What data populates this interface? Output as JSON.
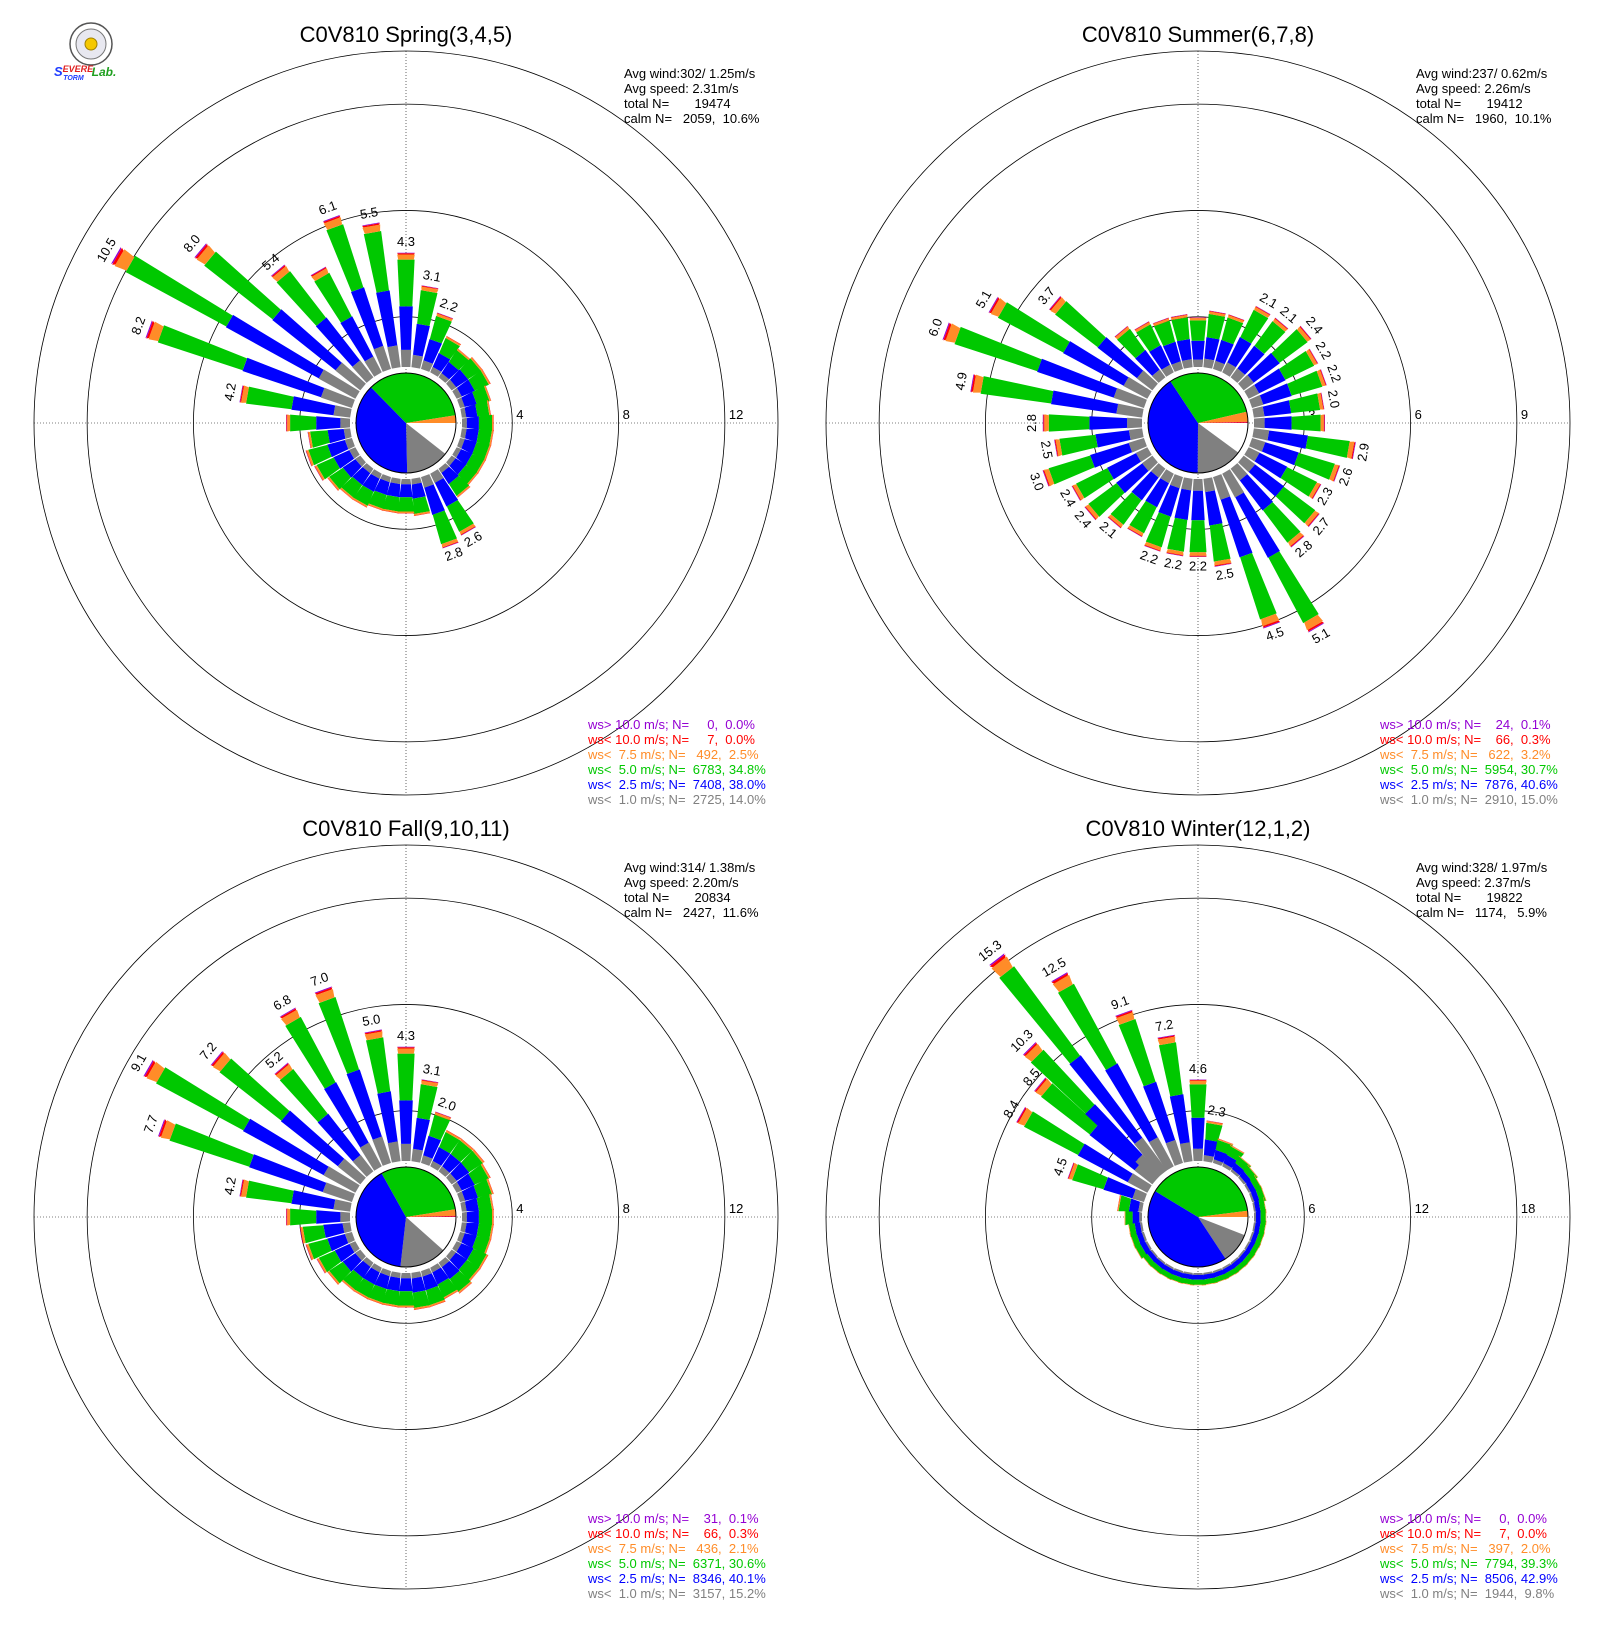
{
  "logo": {
    "text": "Severe Storm Lab."
  },
  "colors": {
    "calm": "#ffffff",
    "lt1": "#808080",
    "lt2_5": "#0000ff",
    "lt5": "#00c800",
    "lt7_5": "#ff8c28",
    "lt10": "#ff0000",
    "gt10": "#9400d3"
  },
  "chart_data": [
    {
      "type": "windrose",
      "title": "C0V810 Spring(3,4,5)",
      "info": [
        "Avg wind:302/ 1.25m/s",
        "Avg speed: 2.31m/s",
        "total N=       19474",
        "calm N=   2059,  10.6%"
      ],
      "rlim": [
        0,
        14
      ],
      "rings": [
        4,
        8,
        12
      ],
      "ring_labels": [
        "4",
        "8",
        "12"
      ],
      "pie": {
        "calm": 10.6,
        "lt1": 14.0,
        "lt2_5": 38.0,
        "lt5": 34.8,
        "lt7_5": 2.5,
        "lt10": 0.0,
        "gt10": 0.0
      },
      "bars": [
        {
          "dir": 340,
          "value": 6.1,
          "label": "6.1"
        },
        {
          "dir": 350,
          "value": 5.5,
          "label": "5.5"
        },
        {
          "dir": 0,
          "value": 4.3,
          "label": "4.3"
        },
        {
          "dir": 10,
          "value": 3.1,
          "label": "3.1"
        },
        {
          "dir": 20,
          "value": 2.2,
          "label": "2.2"
        },
        {
          "dir": 30,
          "value": 1.5
        },
        {
          "dir": 40,
          "value": 1.3
        },
        {
          "dir": 50,
          "value": 1.4
        },
        {
          "dir": 60,
          "value": 1.4
        },
        {
          "dir": 70,
          "value": 1.2
        },
        {
          "dir": 80,
          "value": 1.1
        },
        {
          "dir": 90,
          "value": 1.2
        },
        {
          "dir": 100,
          "value": 1.2
        },
        {
          "dir": 110,
          "value": 1.2
        },
        {
          "dir": 120,
          "value": 1.2
        },
        {
          "dir": 130,
          "value": 1.2
        },
        {
          "dir": 140,
          "value": 1.3
        },
        {
          "dir": 150,
          "value": 2.6,
          "label": "2.6"
        },
        {
          "dir": 160,
          "value": 2.8,
          "label": "2.8"
        },
        {
          "dir": 170,
          "value": 1.4
        },
        {
          "dir": 180,
          "value": 1.3
        },
        {
          "dir": 190,
          "value": 1.3
        },
        {
          "dir": 200,
          "value": 1.3
        },
        {
          "dir": 210,
          "value": 1.4
        },
        {
          "dir": 220,
          "value": 1.4
        },
        {
          "dir": 230,
          "value": 1.5
        },
        {
          "dir": 240,
          "value": 1.7
        },
        {
          "dir": 250,
          "value": 1.8
        },
        {
          "dir": 260,
          "value": 1.6
        },
        {
          "dir": 270,
          "value": 2.4
        },
        {
          "dir": 280,
          "value": 4.2,
          "label": "4.2"
        },
        {
          "dir": 290,
          "value": 8.2,
          "label": "8.2"
        },
        {
          "dir": 300,
          "value": 10.5,
          "label": "10.5"
        },
        {
          "dir": 310,
          "value": 8.0,
          "label": "8.0"
        },
        {
          "dir": 320,
          "value": 5.4,
          "label": "5.4"
        },
        {
          "dir": 330,
          "value": 4.5
        }
      ],
      "legend": [
        {
          "key": "gt10",
          "text": "ws> 10.0 m/s; N=     0,  0.0%"
        },
        {
          "key": "lt10",
          "text": "ws< 10.0 m/s; N=     7,  0.0%"
        },
        {
          "key": "lt7_5",
          "text": "ws<  7.5 m/s; N=   492,  2.5%"
        },
        {
          "key": "lt5",
          "text": "ws<  5.0 m/s; N=  6783, 34.8%"
        },
        {
          "key": "lt2_5",
          "text": "ws<  2.5 m/s; N=  7408, 38.0%"
        },
        {
          "key": "lt1",
          "text": "ws<  1.0 m/s; N=  2725, 14.0%"
        }
      ]
    },
    {
      "type": "windrose",
      "title": "C0V810 Summer(6,7,8)",
      "info": [
        "Avg wind:237/ 0.62m/s",
        "Avg speed: 2.26m/s",
        "total N=       19412",
        "calm N=   1960,  10.1%"
      ],
      "rlim": [
        0,
        10.5
      ],
      "rings": [
        3,
        6,
        9
      ],
      "ring_labels": [
        "3",
        "6",
        "9"
      ],
      "pie": {
        "calm": 10.1,
        "lt1": 15.0,
        "lt2_5": 40.6,
        "lt5": 30.7,
        "lt7_5": 3.2,
        "lt10": 0.3,
        "gt10": 0.1
      },
      "bars": [
        {
          "dir": 0,
          "value": 1.4
        },
        {
          "dir": 10,
          "value": 1.6
        },
        {
          "dir": 20,
          "value": 1.6
        },
        {
          "dir": 30,
          "value": 2.1,
          "label": "2.1"
        },
        {
          "dir": 40,
          "value": 2.1,
          "label": "2.1"
        },
        {
          "dir": 50,
          "value": 2.4,
          "label": "2.4"
        },
        {
          "dir": 60,
          "value": 2.2,
          "label": "2.2"
        },
        {
          "dir": 70,
          "value": 2.2,
          "label": "2.2"
        },
        {
          "dir": 80,
          "value": 2.0,
          "label": "2.0"
        },
        {
          "dir": 90,
          "value": 2.0
        },
        {
          "dir": 100,
          "value": 2.9,
          "label": "2.9"
        },
        {
          "dir": 110,
          "value": 2.6,
          "label": "2.6"
        },
        {
          "dir": 120,
          "value": 2.3,
          "label": "2.3"
        },
        {
          "dir": 130,
          "value": 2.7,
          "label": "2.7"
        },
        {
          "dir": 140,
          "value": 2.8,
          "label": "2.8"
        },
        {
          "dir": 150,
          "value": 5.1,
          "label": "5.1"
        },
        {
          "dir": 160,
          "value": 4.5,
          "label": "4.5"
        },
        {
          "dir": 170,
          "value": 2.5,
          "label": "2.5"
        },
        {
          "dir": 180,
          "value": 2.2,
          "label": "2.2"
        },
        {
          "dir": 190,
          "value": 2.2,
          "label": "2.2"
        },
        {
          "dir": 200,
          "value": 2.2,
          "label": "2.2"
        },
        {
          "dir": 210,
          "value": 2.0
        },
        {
          "dir": 220,
          "value": 2.1,
          "label": "2.1"
        },
        {
          "dir": 230,
          "value": 2.4,
          "label": "2.4"
        },
        {
          "dir": 240,
          "value": 2.4,
          "label": "2.4"
        },
        {
          "dir": 250,
          "value": 3.0,
          "label": "3.0"
        },
        {
          "dir": 260,
          "value": 2.5,
          "label": "2.5"
        },
        {
          "dir": 270,
          "value": 2.8,
          "label": "2.8"
        },
        {
          "dir": 280,
          "value": 4.9,
          "label": "4.9"
        },
        {
          "dir": 290,
          "value": 6.0,
          "label": "6.0"
        },
        {
          "dir": 300,
          "value": 5.1,
          "label": "5.1"
        },
        {
          "dir": 310,
          "value": 3.7,
          "label": "3.7"
        },
        {
          "dir": 320,
          "value": 1.8
        },
        {
          "dir": 330,
          "value": 1.6
        },
        {
          "dir": 340,
          "value": 1.5
        },
        {
          "dir": 350,
          "value": 1.5
        }
      ],
      "legend": [
        {
          "key": "gt10",
          "text": "ws> 10.0 m/s; N=    24,  0.1%"
        },
        {
          "key": "lt10",
          "text": "ws< 10.0 m/s; N=    66,  0.3%"
        },
        {
          "key": "lt7_5",
          "text": "ws<  7.5 m/s; N=   622,  3.2%"
        },
        {
          "key": "lt5",
          "text": "ws<  5.0 m/s; N=  5954, 30.7%"
        },
        {
          "key": "lt2_5",
          "text": "ws<  2.5 m/s; N=  7876, 40.6%"
        },
        {
          "key": "lt1",
          "text": "ws<  1.0 m/s; N=  2910, 15.0%"
        }
      ]
    },
    {
      "type": "windrose",
      "title": "C0V810 Fall(9,10,11)",
      "info": [
        "Avg wind:314/ 1.38m/s",
        "Avg speed: 2.20m/s",
        "total N=       20834",
        "calm N=   2427,  11.6%"
      ],
      "rlim": [
        0,
        14
      ],
      "rings": [
        4,
        8,
        12
      ],
      "ring_labels": [
        "4",
        "8",
        "12"
      ],
      "pie": {
        "calm": 11.6,
        "lt1": 15.2,
        "lt2_5": 40.1,
        "lt5": 30.6,
        "lt7_5": 2.1,
        "lt10": 0.3,
        "gt10": 0.1
      },
      "bars": [
        {
          "dir": 340,
          "value": 7.0,
          "label": "7.0"
        },
        {
          "dir": 350,
          "value": 5.0,
          "label": "5.0"
        },
        {
          "dir": 0,
          "value": 4.3,
          "label": "4.3"
        },
        {
          "dir": 10,
          "value": 3.1,
          "label": "3.1"
        },
        {
          "dir": 20,
          "value": 2.0,
          "label": "2.0"
        },
        {
          "dir": 30,
          "value": 1.5
        },
        {
          "dir": 40,
          "value": 1.5
        },
        {
          "dir": 50,
          "value": 1.5
        },
        {
          "dir": 60,
          "value": 1.4
        },
        {
          "dir": 70,
          "value": 1.3
        },
        {
          "dir": 80,
          "value": 1.2
        },
        {
          "dir": 90,
          "value": 1.2
        },
        {
          "dir": 100,
          "value": 1.2
        },
        {
          "dir": 110,
          "value": 1.2
        },
        {
          "dir": 120,
          "value": 1.3
        },
        {
          "dir": 130,
          "value": 1.3
        },
        {
          "dir": 140,
          "value": 1.4
        },
        {
          "dir": 150,
          "value": 1.3
        },
        {
          "dir": 160,
          "value": 1.4
        },
        {
          "dir": 170,
          "value": 1.4
        },
        {
          "dir": 180,
          "value": 1.3
        },
        {
          "dir": 190,
          "value": 1.3
        },
        {
          "dir": 200,
          "value": 1.3
        },
        {
          "dir": 210,
          "value": 1.3
        },
        {
          "dir": 220,
          "value": 1.3
        },
        {
          "dir": 230,
          "value": 1.5
        },
        {
          "dir": 240,
          "value": 1.6
        },
        {
          "dir": 250,
          "value": 1.8
        },
        {
          "dir": 260,
          "value": 1.9
        },
        {
          "dir": 270,
          "value": 2.4
        },
        {
          "dir": 280,
          "value": 4.2,
          "label": "4.2"
        },
        {
          "dir": 290,
          "value": 7.7,
          "label": "7.7"
        },
        {
          "dir": 300,
          "value": 9.1,
          "label": "9.1"
        },
        {
          "dir": 310,
          "value": 7.2,
          "label": "7.2"
        },
        {
          "dir": 320,
          "value": 5.2,
          "label": "5.2"
        },
        {
          "dir": 330,
          "value": 6.8,
          "label": "6.8"
        }
      ],
      "legend": [
        {
          "key": "gt10",
          "text": "ws> 10.0 m/s; N=    31,  0.1%"
        },
        {
          "key": "lt10",
          "text": "ws< 10.0 m/s; N=    66,  0.3%"
        },
        {
          "key": "lt7_5",
          "text": "ws<  7.5 m/s; N=   436,  2.1%"
        },
        {
          "key": "lt5",
          "text": "ws<  5.0 m/s; N=  6371, 30.6%"
        },
        {
          "key": "lt2_5",
          "text": "ws<  2.5 m/s; N=  8346, 40.1%"
        },
        {
          "key": "lt1",
          "text": "ws<  1.0 m/s; N=  3157, 15.2%"
        }
      ]
    },
    {
      "type": "windrose",
      "title": "C0V810 Winter(12,1,2)",
      "info": [
        "Avg wind:328/ 1.97m/s",
        "Avg speed: 2.37m/s",
        "total N=       19822",
        "calm N=   1174,   5.9%"
      ],
      "rlim": [
        0,
        21
      ],
      "rings": [
        6,
        12,
        18
      ],
      "ring_labels": [
        "6",
        "12",
        "18"
      ],
      "pie": {
        "calm": 5.9,
        "lt1": 9.8,
        "lt2_5": 42.9,
        "lt5": 39.3,
        "lt7_5": 2.0,
        "lt10": 0.0,
        "gt10": 0.0
      },
      "bars": [
        {
          "dir": 330,
          "value": 12.5,
          "label": "12.5"
        },
        {
          "dir": 340,
          "value": 9.1,
          "label": "9.1"
        },
        {
          "dir": 350,
          "value": 7.2,
          "label": "7.2"
        },
        {
          "dir": 0,
          "value": 4.6,
          "label": "4.6"
        },
        {
          "dir": 10,
          "value": 2.3,
          "label": "2.3"
        },
        {
          "dir": 20,
          "value": 1.4
        },
        {
          "dir": 30,
          "value": 1.3
        },
        {
          "dir": 40,
          "value": 1.0
        },
        {
          "dir": 50,
          "value": 0.9
        },
        {
          "dir": 60,
          "value": 0.8
        },
        {
          "dir": 70,
          "value": 0.8
        },
        {
          "dir": 80,
          "value": 0.7
        },
        {
          "dir": 90,
          "value": 0.7
        },
        {
          "dir": 100,
          "value": 0.7
        },
        {
          "dir": 110,
          "value": 0.7
        },
        {
          "dir": 120,
          "value": 0.7
        },
        {
          "dir": 130,
          "value": 0.7
        },
        {
          "dir": 140,
          "value": 0.7
        },
        {
          "dir": 150,
          "value": 0.7
        },
        {
          "dir": 160,
          "value": 0.7
        },
        {
          "dir": 170,
          "value": 0.7
        },
        {
          "dir": 180,
          "value": 0.7
        },
        {
          "dir": 190,
          "value": 0.7
        },
        {
          "dir": 200,
          "value": 0.7
        },
        {
          "dir": 210,
          "value": 0.7
        },
        {
          "dir": 220,
          "value": 0.7
        },
        {
          "dir": 230,
          "value": 0.7
        },
        {
          "dir": 240,
          "value": 0.8
        },
        {
          "dir": 250,
          "value": 0.8
        },
        {
          "dir": 260,
          "value": 0.8
        },
        {
          "dir": 270,
          "value": 1.0
        },
        {
          "dir": 280,
          "value": 1.4
        },
        {
          "dir": 290,
          "value": 4.5,
          "label": "4.5"
        },
        {
          "dir": 300,
          "value": 8.4,
          "label": "8.4"
        },
        {
          "dir": 310,
          "value": 8.5,
          "label": "8.5"
        },
        {
          "dir": 315,
          "value": 10.3,
          "label": "10.3"
        },
        {
          "dir": 322,
          "value": 15.3,
          "label": "15.3"
        }
      ],
      "legend": [
        {
          "key": "gt10",
          "text": "ws> 10.0 m/s; N=     0,  0.0%"
        },
        {
          "key": "lt10",
          "text": "ws< 10.0 m/s; N=     7,  0.0%"
        },
        {
          "key": "lt7_5",
          "text": "ws<  7.5 m/s; N=   397,  2.0%"
        },
        {
          "key": "lt5",
          "text": "ws<  5.0 m/s; N=  7794, 39.3%"
        },
        {
          "key": "lt2_5",
          "text": "ws<  2.5 m/s; N=  8506, 42.9%"
        },
        {
          "key": "lt1",
          "text": "ws<  1.0 m/s; N=  1944,  9.8%"
        }
      ]
    }
  ]
}
